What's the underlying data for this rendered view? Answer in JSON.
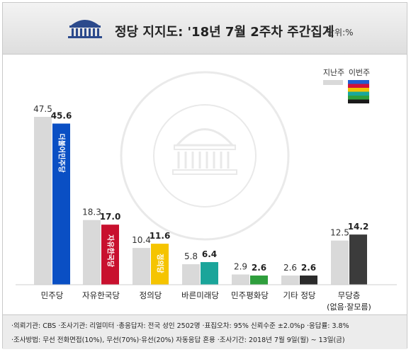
{
  "title": "정당 지지도: '18년 7월 2주차 주간집계",
  "unit": "단위:%",
  "legend": {
    "previous": "지난주",
    "current": "이번주"
  },
  "chart_data": {
    "type": "bar",
    "categories": [
      "민주당",
      "자유한국당",
      "정의당",
      "바른미래당",
      "민주평화당",
      "기타 정당",
      "무당층"
    ],
    "category_note": {
      "무당층": "(없음·잘모름)"
    },
    "series": [
      {
        "name": "지난주",
        "values": [
          47.5,
          18.3,
          10.4,
          5.8,
          2.9,
          2.6,
          12.5
        ],
        "color": "#d9d9d9"
      },
      {
        "name": "이번주",
        "values": [
          45.6,
          17.0,
          11.6,
          6.4,
          2.6,
          2.6,
          14.2
        ],
        "colors": [
          "#0a4fc4",
          "#c8102e",
          "#f5c400",
          "#1aa59a",
          "#2e9e3c",
          "#2b2b2b",
          "#3b3b3b"
        ]
      }
    ],
    "data_labels": [
      [
        "47.5",
        "45.6"
      ],
      [
        "18.3",
        "17.0"
      ],
      [
        "10.4",
        "11.6"
      ],
      [
        "5.8",
        "6.4"
      ],
      [
        "2.9",
        "2.6"
      ],
      [
        "2.6",
        "2.6"
      ],
      [
        "12.5",
        "14.2"
      ]
    ],
    "bar_texts": [
      "더불어민주당",
      "자유한국당",
      "정의당",
      "",
      "",
      "",
      ""
    ],
    "ylim": [
      0,
      50
    ],
    "grid": false,
    "legend_position": "top-right"
  },
  "footer": {
    "line1": "·의뢰기관: CBS ·조사기관: 리얼미터 ·총응답자: 전국 성인 2502명 ·표집오차: 95% 신뢰수준 ±2.0%p ·응답률: 3.8%",
    "line2": "·조사방법: 무선 전화면접(10%), 무선(70%)·유선(20%) 자동응답 혼용 ·조사기간: 2018년 7월 9일(월) ~ 13일(금)"
  },
  "colors": {
    "previous": "#d9d9d9",
    "legend_stripes": [
      "#1f5fd0",
      "#d0103a",
      "#f2c200",
      "#19a89c",
      "#2e9e3c",
      "#1a1a1a"
    ]
  }
}
